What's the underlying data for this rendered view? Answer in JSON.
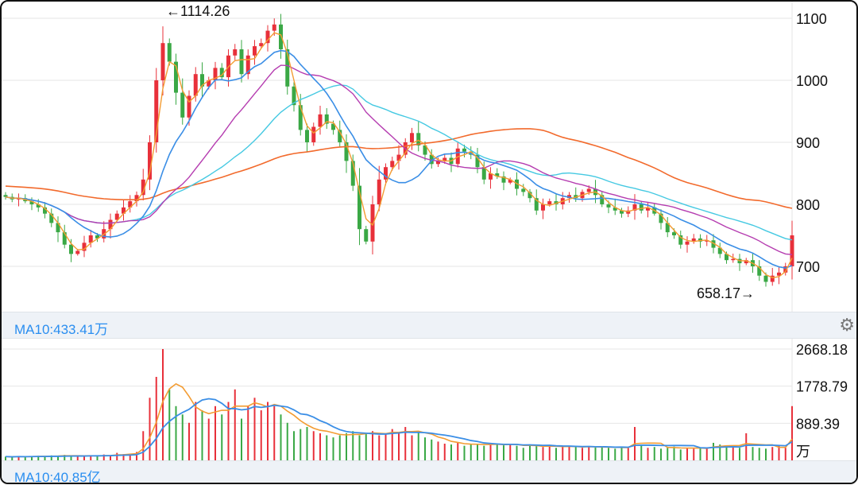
{
  "chart_data": {
    "type": "candlestick",
    "price_axis": {
      "ticks": [
        700,
        800,
        900,
        1000,
        1100
      ],
      "ylim": [
        620,
        1125
      ]
    },
    "volume_axis": {
      "ticks": [
        "2668.18",
        "1778.79",
        "889.39"
      ],
      "unit": "万",
      "ylim": [
        0,
        2668.18
      ]
    },
    "annotations": {
      "high": "←1114.26",
      "low": "658.17→",
      "high_value": 1114.26,
      "low_value": 658.17
    },
    "closes": [
      812,
      808,
      810,
      805,
      800,
      795,
      785,
      770,
      755,
      735,
      720,
      725,
      738,
      750,
      745,
      760,
      775,
      785,
      795,
      805,
      815,
      840,
      900,
      1000,
      1060,
      1030,
      980,
      940,
      975,
      1010,
      990,
      1000,
      1020,
      1005,
      1040,
      1050,
      1010,
      1040,
      1055,
      1060,
      1080,
      1090,
      1050,
      990,
      960,
      920,
      900,
      925,
      945,
      930,
      920,
      900,
      870,
      830,
      760,
      740,
      800,
      840,
      860,
      870,
      880,
      900,
      915,
      895,
      880,
      865,
      870,
      875,
      865,
      890,
      885,
      880,
      860,
      840,
      850,
      845,
      835,
      840,
      825,
      820,
      810,
      790,
      800,
      805,
      800,
      810,
      815,
      810,
      820,
      825,
      815,
      800,
      795,
      790,
      785,
      790,
      800,
      790,
      795,
      785,
      770,
      755,
      750,
      735,
      740,
      745,
      740,
      742,
      730,
      720,
      710,
      712,
      705,
      710,
      700,
      685,
      675,
      685,
      690,
      700,
      750
    ],
    "volumes": [
      90,
      80,
      100,
      85,
      95,
      110,
      90,
      120,
      100,
      130,
      110,
      95,
      105,
      120,
      100,
      140,
      110,
      180,
      150,
      160,
      200,
      700,
      1500,
      2000,
      2668,
      1700,
      1300,
      1100,
      900,
      1400,
      1200,
      1000,
      1300,
      1100,
      1400,
      1700,
      1000,
      1300,
      1500,
      1200,
      1400,
      1300,
      1100,
      900,
      700,
      750,
      800,
      700,
      650,
      600,
      550,
      600,
      650,
      700,
      600,
      650,
      700,
      600,
      650,
      750,
      650,
      800,
      600,
      700,
      550,
      500,
      450,
      400,
      380,
      420,
      350,
      400,
      380,
      350,
      420,
      380,
      360,
      400,
      350,
      300,
      380,
      340,
      320,
      360,
      300,
      330,
      350,
      320,
      300,
      340,
      310,
      330,
      300,
      280,
      320,
      300,
      800,
      350,
      300,
      320,
      280,
      300,
      330,
      260,
      300,
      280,
      310,
      290,
      420,
      380,
      350,
      330,
      300,
      650,
      320,
      300,
      280,
      320,
      350,
      300,
      1300
    ],
    "ma_colors": {
      "ma5": "#f39c32",
      "ma10": "#3a8ee6",
      "ma20": "#b53cb0",
      "ma30": "#45c9e2",
      "ma60": "#f26a2c"
    },
    "up_color": "#e8303a",
    "down_color": "#3aa845"
  },
  "volume_bar": {
    "label": "MA10:433.41万"
  },
  "bottom_bar": {
    "label": "MA10:40.85亿"
  }
}
